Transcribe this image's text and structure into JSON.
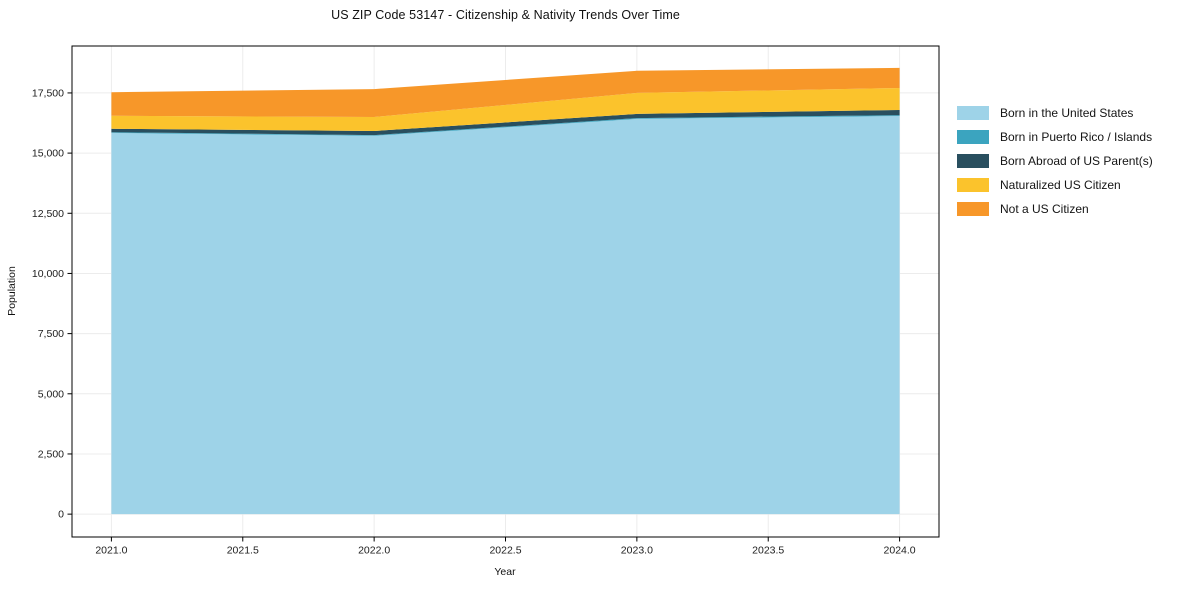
{
  "figure": {
    "background": "#ffffff",
    "spine_color": "#000000",
    "grid_color": "#ececec",
    "tick_label_color": "#1c1c1c"
  },
  "chart_data": {
    "type": "area",
    "stacked": true,
    "title": "US ZIP Code 53147 - Citizenship & Nativity Trends Over Time",
    "xlabel": "Year",
    "ylabel": "Population",
    "x": [
      2021,
      2022,
      2023,
      2024
    ],
    "series": [
      {
        "name": "Born in the United States",
        "color": "#9ed3e8",
        "values": [
          15840,
          15720,
          16420,
          16540
        ]
      },
      {
        "name": "Born in Puerto Rico / Islands",
        "color": "#3ba4bf",
        "values": [
          30,
          30,
          35,
          40
        ]
      },
      {
        "name": "Born Abroad of US Parent(s)",
        "color": "#294f5f",
        "values": [
          140,
          170,
          175,
          210
        ]
      },
      {
        "name": "Naturalized US Citizen",
        "color": "#fbc32c",
        "values": [
          540,
          580,
          870,
          915
        ]
      },
      {
        "name": "Not a US Citizen",
        "color": "#f79729",
        "values": [
          980,
          1160,
          920,
          835
        ]
      }
    ],
    "totals": [
      17530,
      17660,
      18420,
      18540
    ],
    "xticks": [
      2021.0,
      2021.5,
      2022.0,
      2022.5,
      2023.0,
      2023.5,
      2024.0
    ],
    "yticks": [
      0,
      2500,
      5000,
      7500,
      10000,
      12500,
      15000,
      17500
    ],
    "xlim": [
      2020.85,
      2024.15
    ],
    "ylim": [
      -950,
      19450
    ],
    "grid": true,
    "legend_position": "right-outside"
  }
}
